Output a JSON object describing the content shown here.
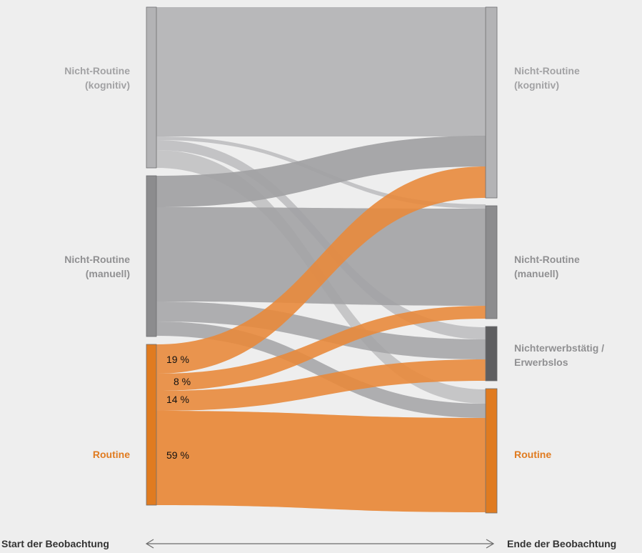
{
  "colors": {
    "background": "#eeeeee",
    "cognitive_node": "#b3b3b5",
    "manual_node": "#8c8c8e",
    "unemployed_node": "#5e5e60",
    "routine_node": "#e07b20",
    "cognitive_flow": "#b8b8ba",
    "manual_flow": "#a2a2a4",
    "routine_flow": "#e88a3c",
    "label_gray": "#a2a2a4",
    "label_dark": "#909092",
    "label_orange": "#e07b20",
    "axis": "#6b6b6b"
  },
  "left_nodes": [
    {
      "id": "cog",
      "lines": [
        "Nicht-Routine",
        "(kognitiv)"
      ]
    },
    {
      "id": "man",
      "lines": [
        "Nicht-Routine",
        "(manuell)"
      ]
    },
    {
      "id": "rou",
      "lines": [
        "Routine"
      ]
    }
  ],
  "right_nodes": [
    {
      "id": "cog",
      "lines": [
        "Nicht-Routine",
        "(kognitiv)"
      ]
    },
    {
      "id": "man",
      "lines": [
        "Nicht-Routine",
        "(manuell)"
      ]
    },
    {
      "id": "une",
      "lines": [
        "Nichterwerbstätig /",
        "Erwerbslos"
      ]
    },
    {
      "id": "rou",
      "lines": [
        "Routine"
      ]
    }
  ],
  "flow_labels": [
    "19 %",
    "8 %",
    "14 %",
    "59 %"
  ],
  "axis": {
    "start": "Start der Beobachtung",
    "end": "Ende  der Beobachtung"
  }
}
